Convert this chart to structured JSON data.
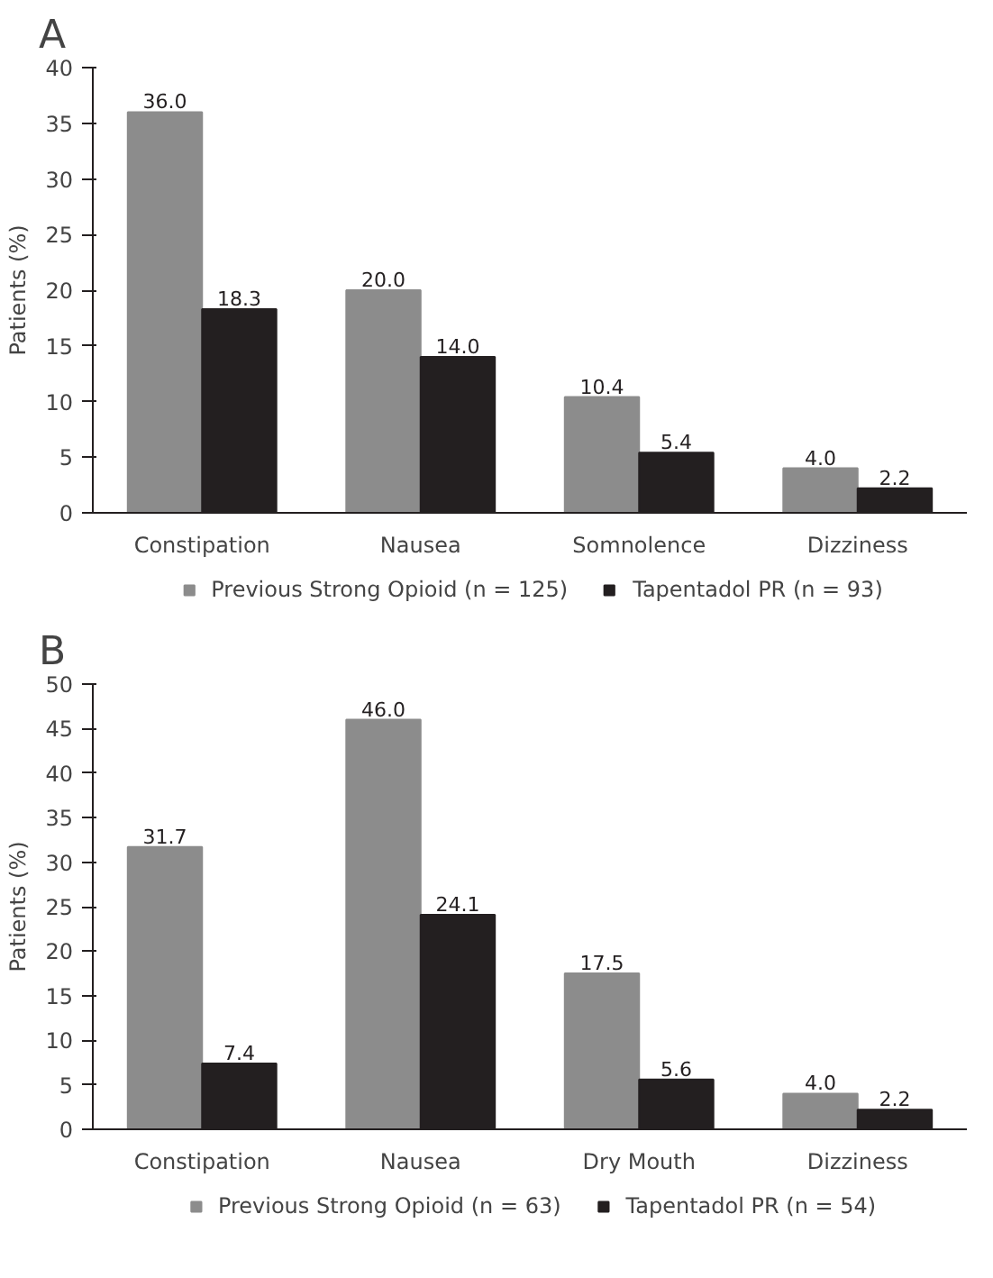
{
  "chart_data": [
    {
      "type": "bar",
      "title": "A",
      "ylabel": "Patients (%)",
      "categories": [
        "Constipation",
        "Nausea",
        "Somnolence",
        "Dizziness"
      ],
      "series": [
        {
          "name": "Previous Strong Opioid (n = 125)",
          "color": "#8c8c8c",
          "values": [
            36.0,
            20.0,
            10.4,
            4.0
          ]
        },
        {
          "name": "Tapentadol PR (n = 93)",
          "color": "#231f20",
          "values": [
            18.3,
            14.0,
            5.4,
            2.2
          ]
        }
      ],
      "value_labels": [
        [
          "36.0",
          "20.0",
          "10.4",
          "4.0"
        ],
        [
          "18.3",
          "14.0",
          "5.4",
          "2.2"
        ]
      ],
      "ylim": [
        0,
        40
      ],
      "yticks": [
        0,
        5,
        10,
        15,
        20,
        25,
        30,
        35,
        40
      ],
      "legend": "bottom",
      "grid": false
    },
    {
      "type": "bar",
      "title": "B",
      "ylabel": "Patients (%)",
      "categories": [
        "Constipation",
        "Nausea",
        "Dry Mouth",
        "Dizziness"
      ],
      "series": [
        {
          "name": "Previous Strong Opioid (n = 63)",
          "color": "#8c8c8c",
          "values": [
            31.7,
            46.0,
            17.5,
            4.0
          ]
        },
        {
          "name": "Tapentadol PR (n = 54)",
          "color": "#231f20",
          "values": [
            7.4,
            24.1,
            5.6,
            2.2
          ]
        }
      ],
      "value_labels": [
        [
          "31.7",
          "46.0",
          "17.5",
          "4.0"
        ],
        [
          "7.4",
          "24.1",
          "5.6",
          "2.2"
        ]
      ],
      "ylim": [
        0,
        50
      ],
      "yticks": [
        0,
        5,
        10,
        15,
        20,
        25,
        30,
        35,
        40,
        45,
        50
      ],
      "legend": "bottom",
      "grid": false
    }
  ]
}
